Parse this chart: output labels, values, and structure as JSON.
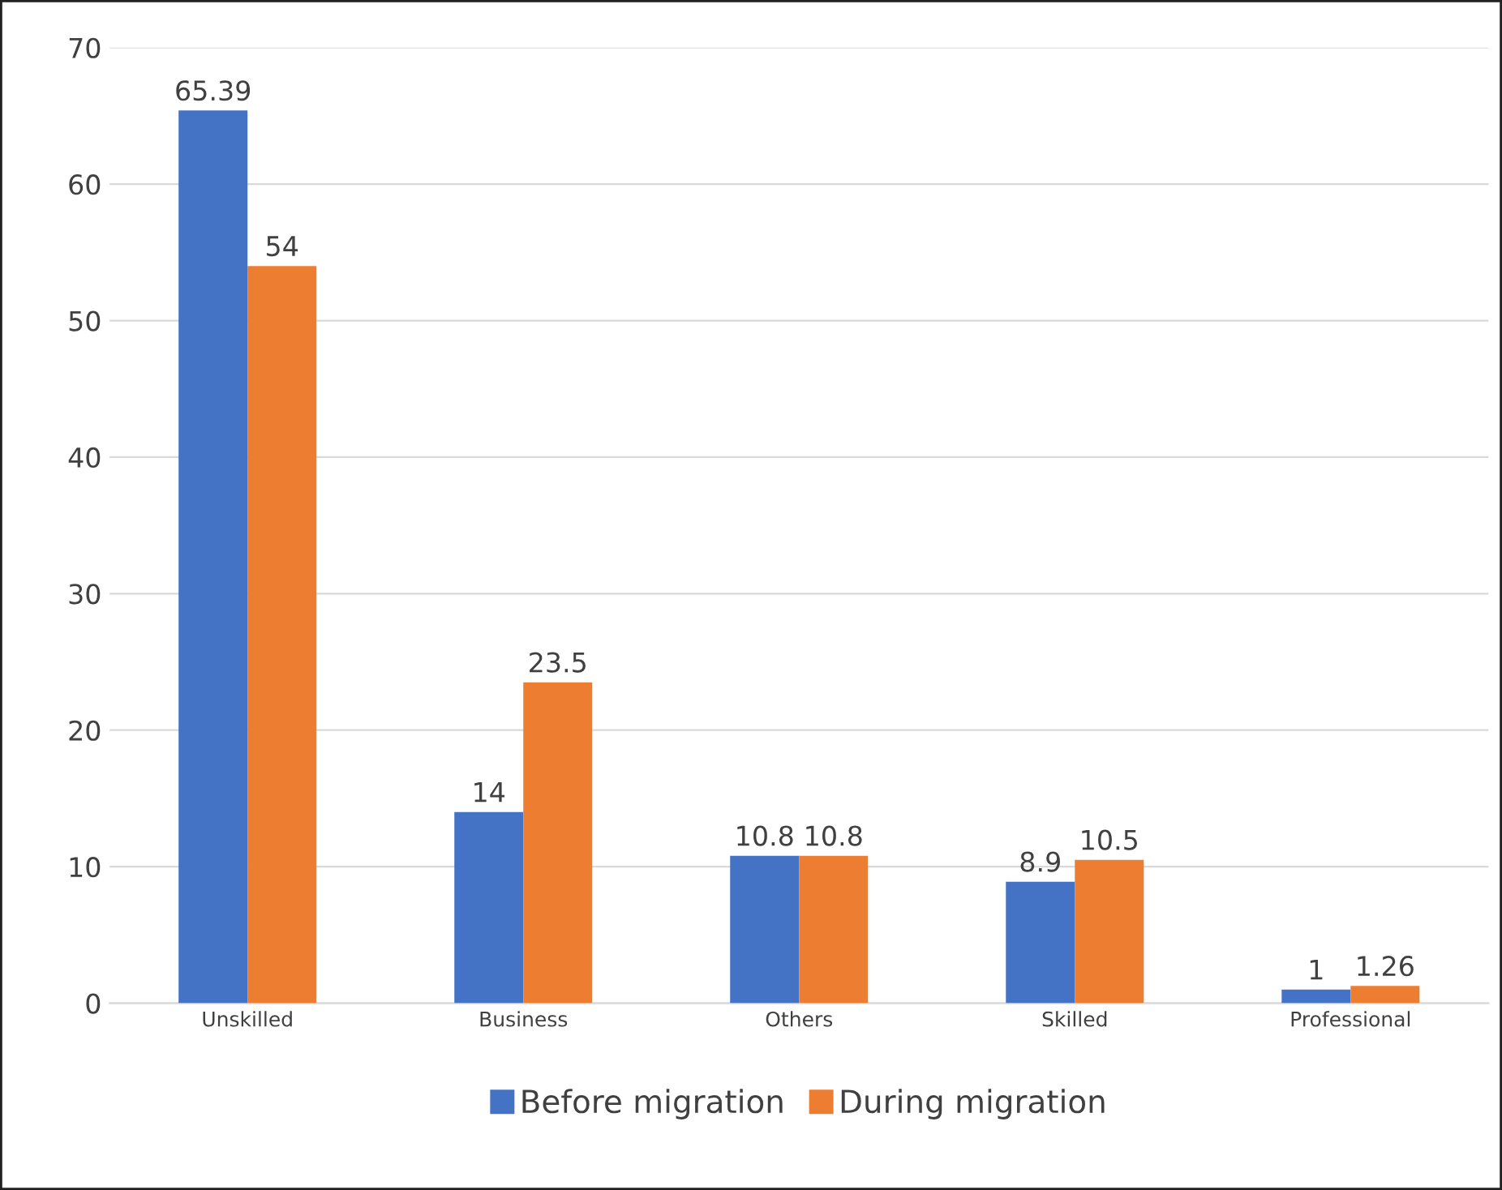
{
  "chart_data": {
    "type": "bar",
    "categories": [
      "Unskilled",
      "Business",
      "Others",
      "Skilled",
      "Professional"
    ],
    "series": [
      {
        "name": "Before migration",
        "color": "#4472c4",
        "values": [
          65.39,
          14,
          10.8,
          8.9,
          1
        ]
      },
      {
        "name": "During migration",
        "color": "#ed7d31",
        "values": [
          54,
          23.5,
          10.8,
          10.5,
          1.26
        ]
      }
    ],
    "ylim": [
      0,
      70
    ],
    "yticks": [
      0,
      10,
      20,
      30,
      40,
      50,
      60,
      70
    ],
    "grid": "y",
    "legend": "bottom",
    "data_labels": true
  }
}
